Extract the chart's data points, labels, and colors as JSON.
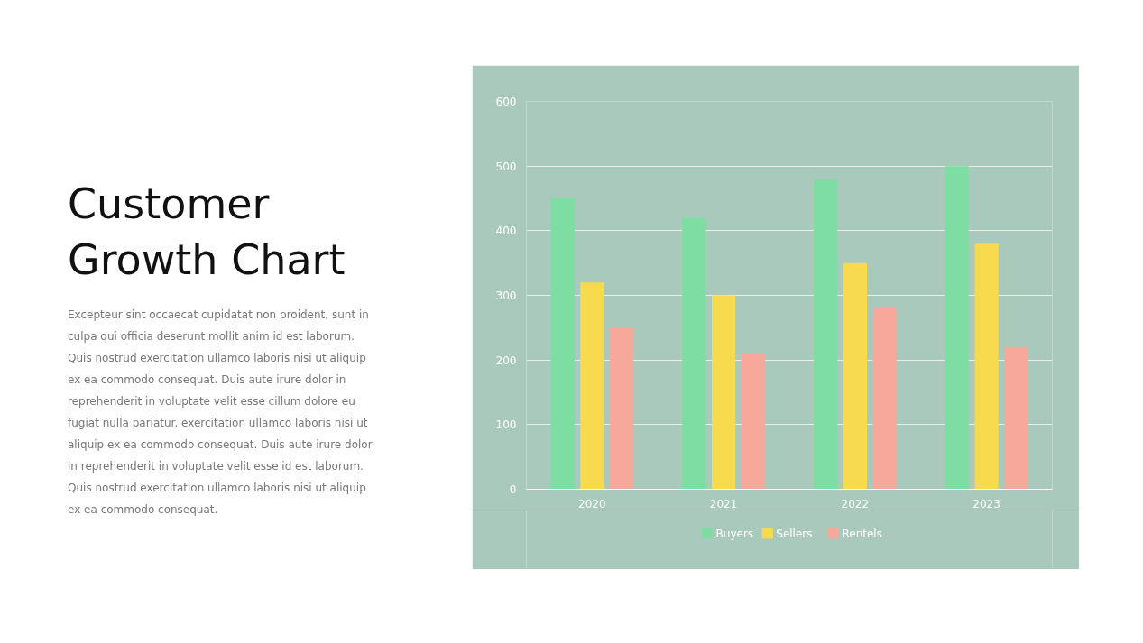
{
  "chart_data": {
    "type": "bar",
    "title": "Customer Growth Chart",
    "annotations": [
      "Excepteur sint occaecat cupidatat non proident, sunt in culpa qui officia deserunt mollit anim id est laborum. Quis nostrud exercitation ullamco laboris nisi ut aliquip ex ea commodo consequat. Duis aute irure dolor in reprehenderit in voluptate velit esse cillum dolore eu fugiat nulla pariatur. exercitation ullamco laboris nisi ut aliquip ex ea commodo consequat. Duis aute irure dolor in reprehenderit in voluptate velit esse id est laborum. Quis nostrud exercitation ullamco laboris nisi ut aliquip ex ea commodo consequat."
    ],
    "categories": [
      "2020",
      "2021",
      "2022",
      "2023"
    ],
    "series": [
      {
        "name": "Buyers",
        "color": "#7dddA3",
        "values": [
          450,
          420,
          480,
          500
        ]
      },
      {
        "name": "Sellers",
        "color": "#f8da4e",
        "values": [
          320,
          300,
          350,
          380
        ]
      },
      {
        "name": "Rentels",
        "color": "#f6a99b",
        "values": [
          250,
          210,
          280,
          220
        ]
      }
    ],
    "ylim": [
      0,
      600
    ],
    "yticks": [
      0,
      100,
      200,
      300,
      400,
      500,
      600
    ],
    "grid": "y",
    "legend": "bottom"
  }
}
